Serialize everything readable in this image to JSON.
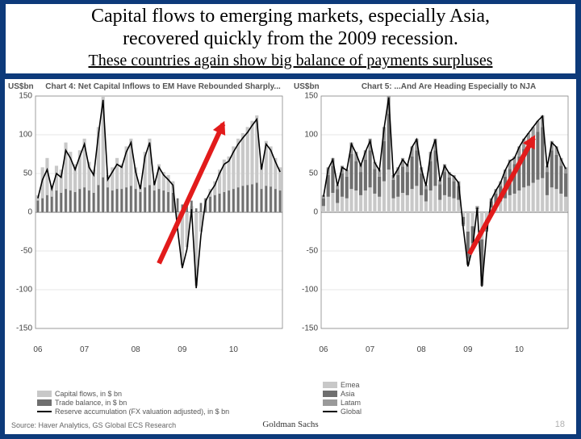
{
  "header": {
    "title_line1": "Capital flows to emerging markets, especially Asia,",
    "title_line2": "recovered quickly from the 2009 recession.",
    "subtitle": "These countries again show big balance of payments surpluses"
  },
  "palette": {
    "page_bg": "#0d3a7a",
    "panel_bg": "#ffffff",
    "grid": "#cfcfcf",
    "axis": "#888888",
    "bar_light": "#c8c8c8",
    "bar_dark": "#6f6f6f",
    "line_black": "#000000",
    "arrow_red": "#e21b1b"
  },
  "chart4": {
    "unit": "US$bn",
    "title": "Chart 4: Net Capital Inflows to EM Have Rebounded Sharply...",
    "ylim": [
      -150,
      150
    ],
    "ytick_step": 50,
    "xlabels": [
      "06",
      "07",
      "08",
      "09",
      "10"
    ],
    "legend": [
      {
        "kind": "bar",
        "color": "#c8c8c8",
        "label": "Capital flows, in $ bn"
      },
      {
        "kind": "bar",
        "color": "#6f6f6f",
        "label": "Trade balance, in $ bn"
      },
      {
        "kind": "line",
        "color": "#000000",
        "label": "Reserve accumulation (FX valuation adjusted), in $ bn"
      }
    ],
    "source": "Source: Haver Analytics, GS Global ECS Research",
    "series": {
      "capital_flows": [
        22,
        58,
        70,
        35,
        60,
        55,
        90,
        78,
        62,
        80,
        95,
        65,
        55,
        110,
        150,
        48,
        58,
        70,
        62,
        85,
        95,
        58,
        35,
        78,
        95,
        40,
        62,
        52,
        48,
        40,
        -18,
        -68,
        -45,
        8,
        -95,
        -25,
        18,
        30,
        40,
        55,
        68,
        72,
        85,
        95,
        102,
        110,
        118,
        125,
        60,
        92,
        85,
        70,
        58
      ],
      "trade_balance": [
        15,
        18,
        22,
        20,
        28,
        25,
        30,
        28,
        26,
        30,
        32,
        28,
        25,
        35,
        45,
        32,
        28,
        30,
        30,
        32,
        34,
        30,
        26,
        32,
        35,
        28,
        30,
        28,
        26,
        25,
        18,
        10,
        12,
        15,
        5,
        12,
        18,
        20,
        22,
        24,
        26,
        28,
        30,
        32,
        34,
        35,
        36,
        38,
        30,
        34,
        33,
        30,
        28
      ],
      "reserve_accum": [
        18,
        42,
        55,
        30,
        50,
        45,
        80,
        70,
        55,
        72,
        88,
        58,
        48,
        100,
        145,
        42,
        52,
        62,
        58,
        78,
        90,
        52,
        30,
        72,
        90,
        35,
        58,
        48,
        42,
        35,
        -22,
        -72,
        -48,
        4,
        -98,
        -30,
        14,
        26,
        35,
        50,
        62,
        66,
        78,
        88,
        96,
        103,
        112,
        120,
        55,
        88,
        80,
        65,
        52
      ]
    },
    "arrow": {
      "x1_pct": 50,
      "y1_pct": 72,
      "x2_pct": 76,
      "y2_pct": 12
    }
  },
  "chart5": {
    "unit": "US$bn",
    "title": "Chart 5: ...And Are Heading Especially to NJA",
    "ylim": [
      -150,
      150
    ],
    "ytick_step": 50,
    "xlabels": [
      "06",
      "07",
      "08",
      "09",
      "10"
    ],
    "legend": [
      {
        "kind": "bar",
        "color": "#c8c8c8",
        "label": "Emea"
      },
      {
        "kind": "bar",
        "color": "#6f6f6f",
        "label": "Asia"
      },
      {
        "kind": "bar",
        "color": "#9a9a9a",
        "label": "Latam"
      },
      {
        "kind": "line",
        "color": "#000000",
        "label": "Global"
      }
    ],
    "series": {
      "emea": [
        8,
        20,
        25,
        12,
        20,
        18,
        30,
        28,
        22,
        28,
        32,
        24,
        20,
        40,
        55,
        18,
        20,
        25,
        22,
        30,
        34,
        22,
        14,
        28,
        34,
        16,
        22,
        20,
        18,
        16,
        -6,
        -25,
        -18,
        4,
        -35,
        -10,
        6,
        10,
        14,
        18,
        22,
        24,
        28,
        32,
        34,
        38,
        42,
        44,
        22,
        32,
        30,
        24,
        20
      ],
      "asia": [
        10,
        28,
        35,
        18,
        30,
        28,
        45,
        38,
        30,
        40,
        48,
        32,
        26,
        52,
        72,
        24,
        28,
        34,
        30,
        42,
        46,
        28,
        16,
        38,
        46,
        20,
        30,
        25,
        22,
        18,
        -10,
        -35,
        -22,
        2,
        -48,
        -12,
        8,
        14,
        20,
        28,
        34,
        38,
        44,
        50,
        54,
        58,
        62,
        66,
        30,
        48,
        44,
        36,
        30
      ],
      "latam": [
        4,
        10,
        10,
        5,
        10,
        9,
        15,
        12,
        10,
        12,
        15,
        9,
        9,
        18,
        23,
        6,
        10,
        11,
        10,
        13,
        15,
        8,
        5,
        12,
        15,
        6,
        10,
        7,
        8,
        6,
        -2,
        -8,
        -5,
        2,
        -12,
        -3,
        4,
        6,
        6,
        9,
        12,
        10,
        13,
        13,
        14,
        14,
        14,
        15,
        8,
        12,
        11,
        10,
        8
      ],
      "global": [
        20,
        56,
        68,
        34,
        58,
        54,
        88,
        76,
        60,
        78,
        92,
        64,
        54,
        108,
        148,
        46,
        56,
        68,
        60,
        84,
        94,
        56,
        34,
        76,
        94,
        40,
        60,
        50,
        46,
        38,
        -20,
        -70,
        -46,
        6,
        -96,
        -28,
        16,
        28,
        38,
        54,
        66,
        70,
        84,
        94,
        102,
        110,
        118,
        124,
        58,
        90,
        84,
        68,
        56
      ]
    },
    "arrow": {
      "x1_pct": 60,
      "y1_pct": 68,
      "x2_pct": 86,
      "y2_pct": 18
    }
  },
  "credit": "Goldman Sachs",
  "pagenum": "18"
}
